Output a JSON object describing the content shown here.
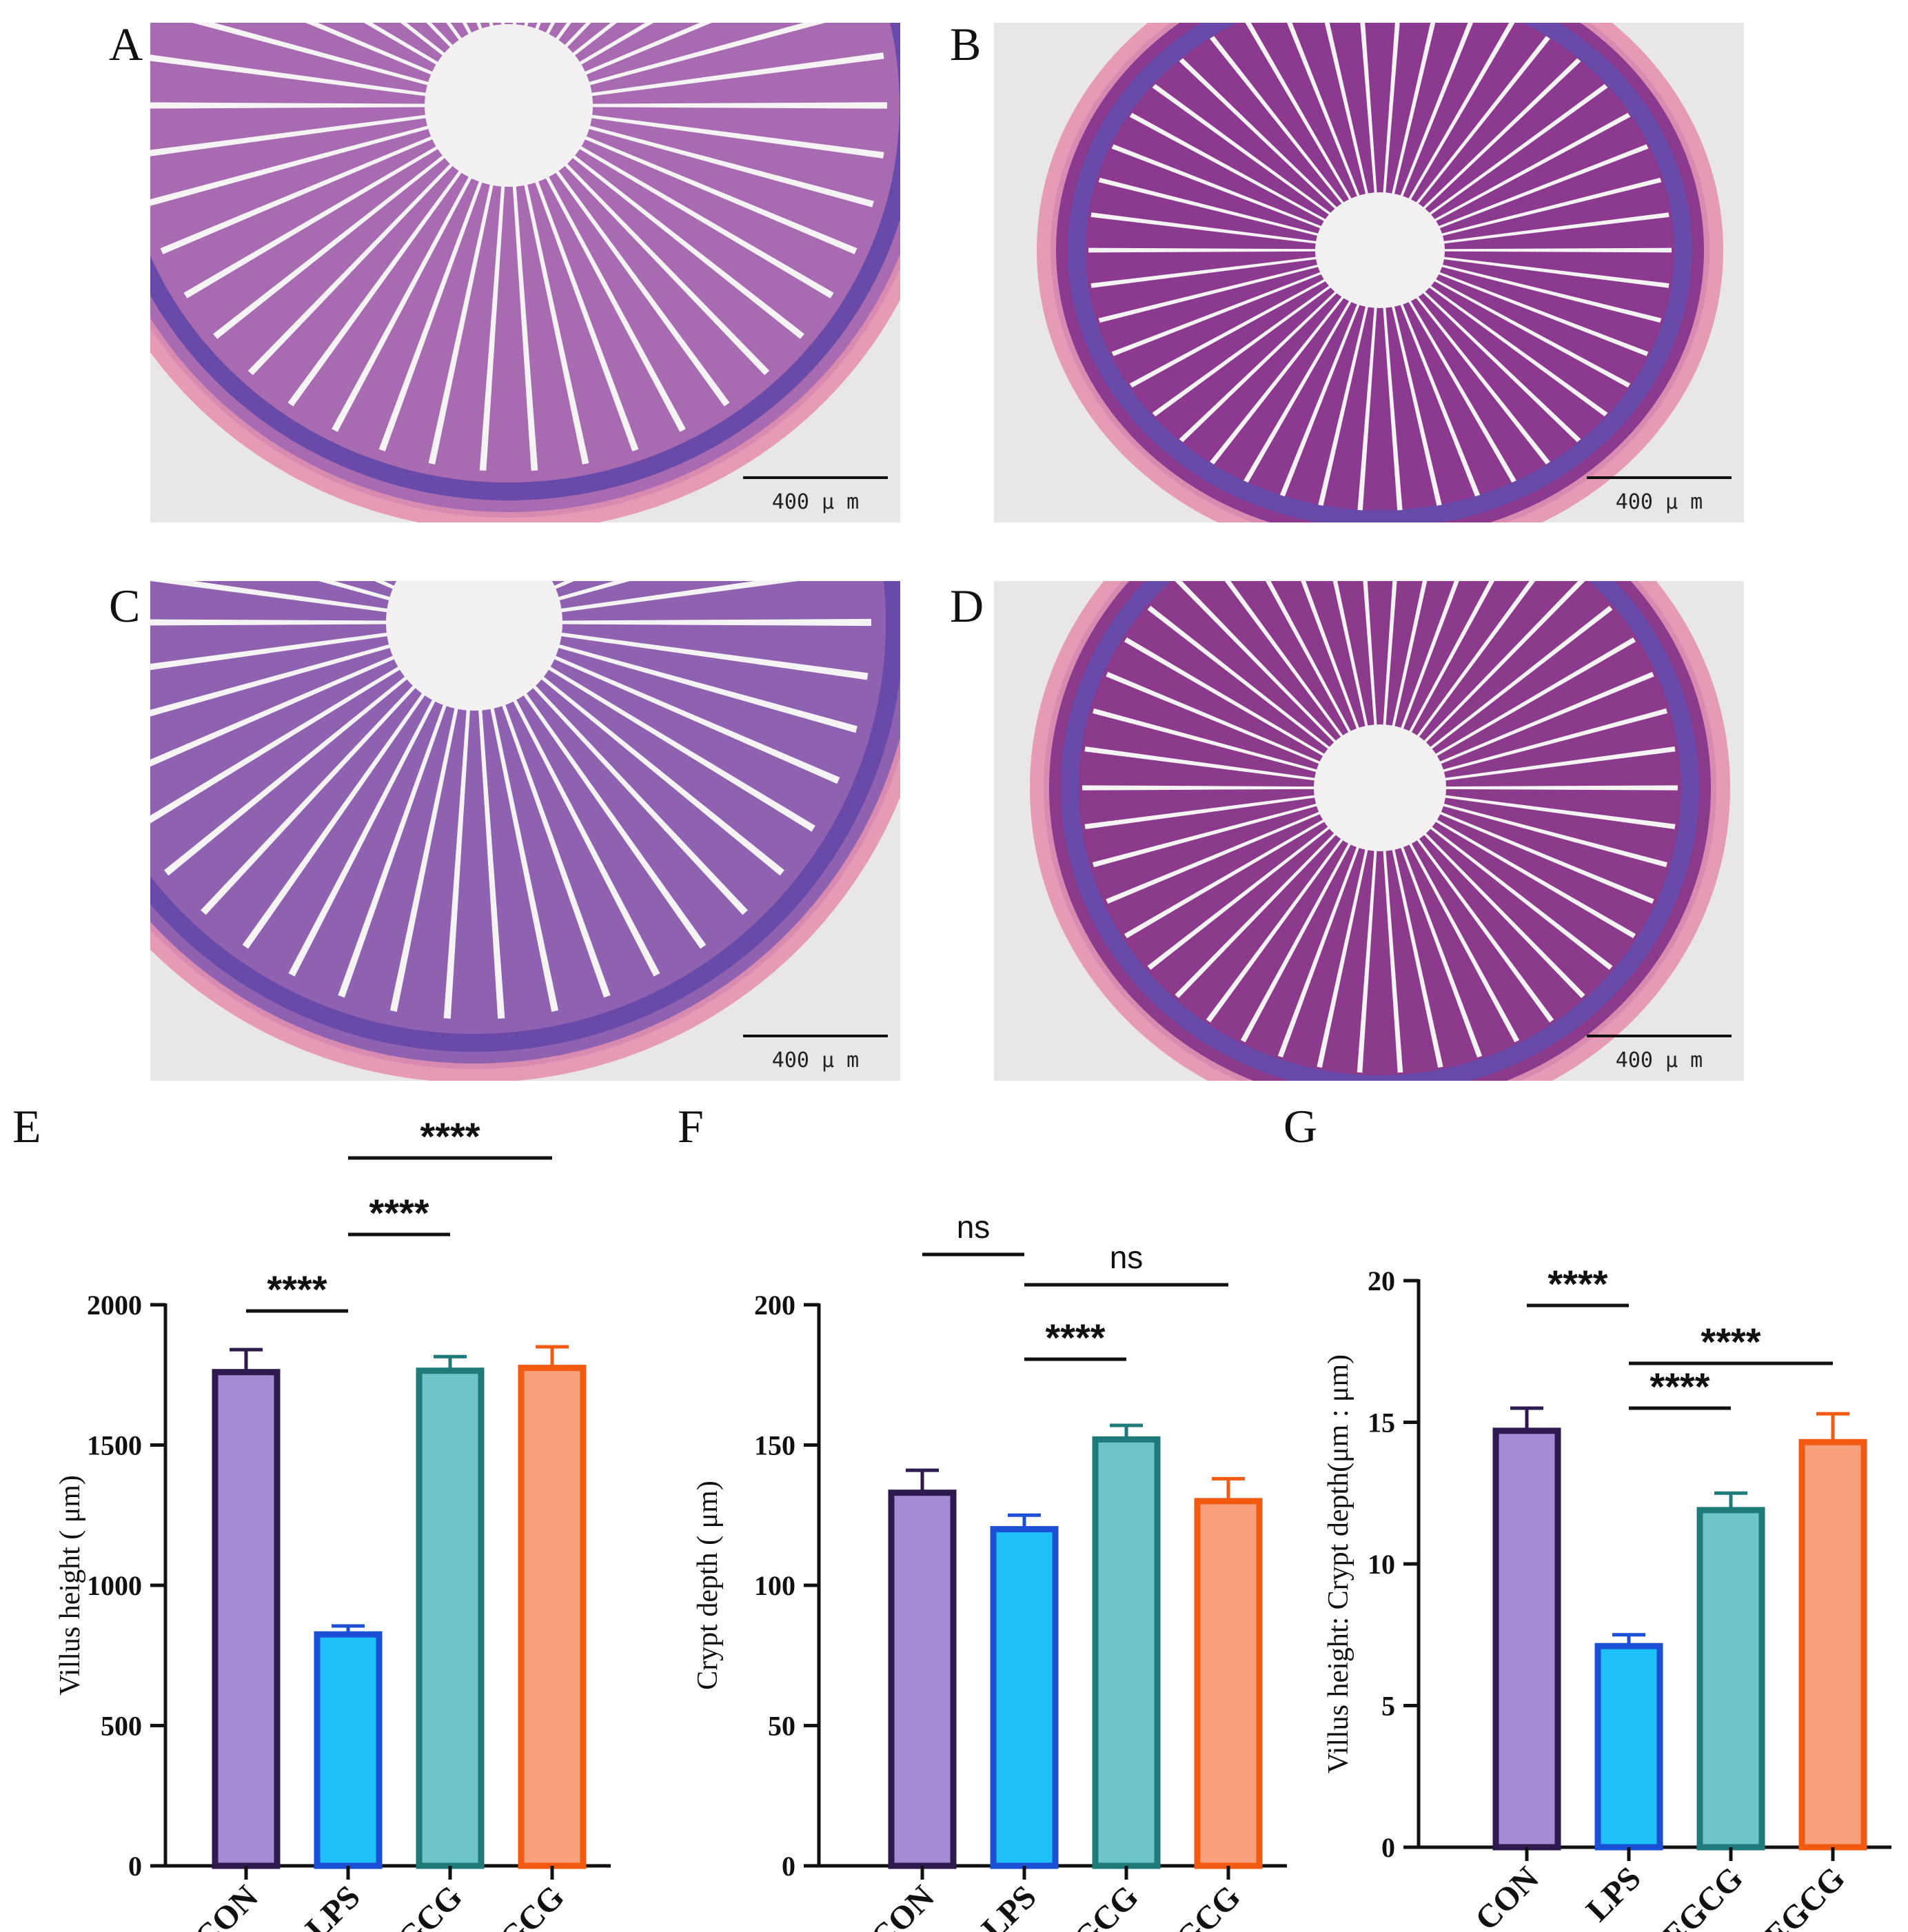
{
  "panels": {
    "A": "A",
    "B": "B",
    "C": "C",
    "D": "D",
    "E": "E",
    "F": "F",
    "G": "G"
  },
  "scale_bar_label": "400 μ m",
  "micrographs": [
    {
      "panel": "A",
      "stain_color": "#a86bb2"
    },
    {
      "panel": "B",
      "stain_color": "#8c3a8f"
    },
    {
      "panel": "C",
      "stain_color": "#8e62b0"
    },
    {
      "panel": "D",
      "stain_color": "#8b3a8c"
    }
  ],
  "colors": {
    "CON": {
      "fill": "#a58bd5",
      "stroke": "#2e1a4f"
    },
    "LPS": {
      "fill": "#1ec1f7",
      "stroke": "#1a4fd6"
    },
    "L-EGCG": {
      "fill": "#6ec4c9",
      "stroke": "#1f7a7a"
    },
    "H-EGCG": {
      "fill": "#f8a07c",
      "stroke": "#f25a12"
    }
  },
  "chart_data": [
    {
      "type": "bar",
      "panel": "E",
      "categories": [
        "CON",
        "LPS",
        "L-EGCG",
        "H-EGCG"
      ],
      "values": [
        1760,
        825,
        1765,
        1775
      ],
      "errors": [
        80,
        30,
        50,
        75
      ],
      "ylabel": "Villus height ( μm)",
      "ylim": [
        0,
        2000
      ],
      "yticks": [
        "0",
        "500",
        "1000",
        "1500",
        "2000"
      ],
      "comparisons": [
        {
          "from": 0,
          "to": 1,
          "label": "****"
        },
        {
          "from": 1,
          "to": 2,
          "label": "****"
        },
        {
          "from": 1,
          "to": 3,
          "label": "****"
        }
      ]
    },
    {
      "type": "bar",
      "panel": "F",
      "categories": [
        "CON",
        "LPS",
        "L-EGCG",
        "H-EGCG"
      ],
      "values": [
        133,
        120,
        152,
        130
      ],
      "errors": [
        8,
        5,
        5,
        8
      ],
      "ylabel": "Crypt depth ( μm)",
      "ylim": [
        0,
        200
      ],
      "yticks": [
        "0",
        "50",
        "100",
        "150",
        "200"
      ],
      "comparisons": [
        {
          "from": 0,
          "to": 1,
          "label": "ns"
        },
        {
          "from": 1,
          "to": 2,
          "label": "****"
        },
        {
          "from": 1,
          "to": 3,
          "label": "ns"
        }
      ]
    },
    {
      "type": "bar",
      "panel": "G",
      "categories": [
        "CON",
        "LPS",
        "L-EGCG",
        "H-EGCG"
      ],
      "values": [
        14.7,
        7.1,
        11.9,
        14.3
      ],
      "errors": [
        0.8,
        0.4,
        0.6,
        1.0
      ],
      "ylabel": "Villus height: Crypt depth(μm : μm)",
      "ylim": [
        0,
        20
      ],
      "yticks": [
        "0",
        "5",
        "10",
        "15",
        "20"
      ],
      "comparisons": [
        {
          "from": 0,
          "to": 1,
          "label": "****"
        },
        {
          "from": 1,
          "to": 2,
          "label": "****"
        },
        {
          "from": 1,
          "to": 3,
          "label": "****"
        }
      ]
    }
  ]
}
